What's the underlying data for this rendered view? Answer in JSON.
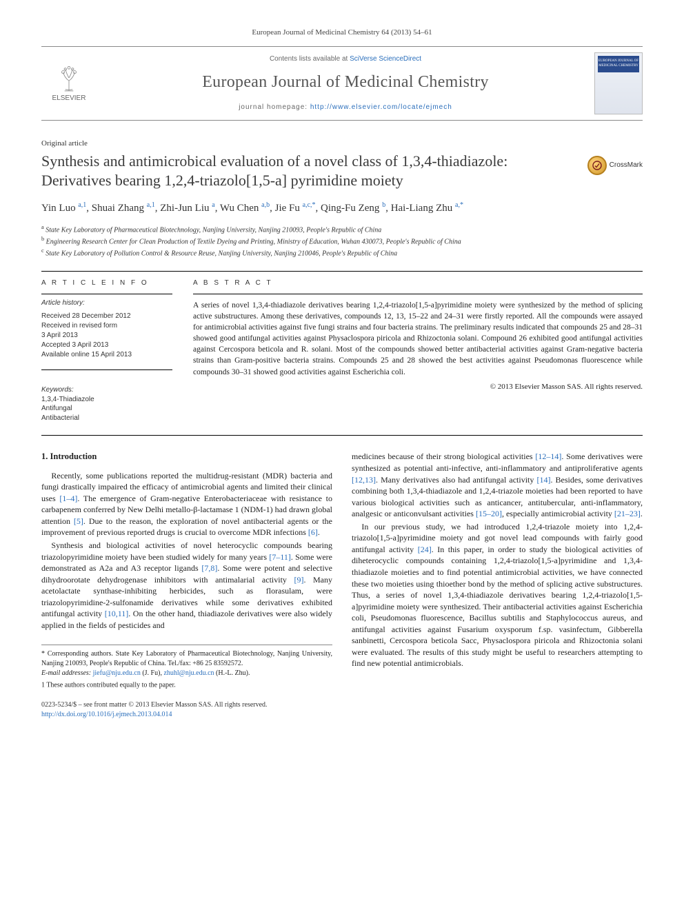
{
  "citation": "European Journal of Medicinal Chemistry 64 (2013) 54–61",
  "masthead": {
    "publisher": "ELSEVIER",
    "avail_prefix": "Contents lists available at ",
    "avail_link": "SciVerse ScienceDirect",
    "journal_title": "European Journal of Medicinal Chemistry",
    "home_prefix": "journal homepage: ",
    "home_url": "http://www.elsevier.com/locate/ejmech",
    "cover_label": "EUROPEAN JOURNAL OF MEDICINAL CHEMISTRY"
  },
  "article": {
    "type": "Original article",
    "title": "Synthesis and antimicrobical evaluation of a novel class of 1,3,4-thiadiazole: Derivatives bearing 1,2,4-triazolo[1,5-a] pyrimidine moiety",
    "crossmark": "CrossMark"
  },
  "authors": "Yin Luo <sup>a,1</sup>, Shuai Zhang <sup>a,1</sup>, Zhi-Jun Liu <sup>a</sup>, Wu Chen <sup>a,b</sup>, Jie Fu <sup>a,c,*</sup>, Qing-Fu Zeng <sup>b</sup>, Hai-Liang Zhu <sup>a,*</sup>",
  "affiliations": {
    "a": "State Key Laboratory of Pharmaceutical Biotechnology, Nanjing University, Nanjing 210093, People's Republic of China",
    "b": "Engineering Research Center for Clean Production of Textile Dyeing and Printing, Ministry of Education, Wuhan 430073, People's Republic of China",
    "c": "State Key Laboratory of Pollution Control & Resource Reuse, Nanjing University, Nanjing 210046, People's Republic of China"
  },
  "info": {
    "heading": "A R T I C L E   I N F O",
    "hist_label": "Article history:",
    "hist": [
      "Received 28 December 2012",
      "Received in revised form",
      "3 April 2013",
      "Accepted 3 April 2013",
      "Available online 15 April 2013"
    ],
    "kw_label": "Keywords:",
    "keywords": [
      "1,3,4-Thiadiazole",
      "Antifungal",
      "Antibacterial"
    ]
  },
  "abstract": {
    "heading": "A B S T R A C T",
    "text": "A series of novel 1,3,4-thiadiazole derivatives bearing 1,2,4-triazolo[1,5-a]pyrimidine moiety were synthesized by the method of splicing active substructures. Among these derivatives, compounds 12, 13, 15–22 and 24–31 were firstly reported. All the compounds were assayed for antimicrobial activities against five fungi strains and four bacteria strains. The preliminary results indicated that compounds 25 and 28–31 showed good antifungal activities against Physaclospora piricola and Rhizoctonia solani. Compound 26 exhibited good antifungal activities against Cercospora beticola and R. solani. Most of the compounds showed better antibacterial activities against Gram-negative bacteria strains than Gram-positive bacteria strains. Compounds 25 and 28 showed the best activities against Pseudomonas fluorescence while compounds 30–31 showed good activities against Escherichia coli.",
    "copyright": "© 2013 Elsevier Masson SAS. All rights reserved."
  },
  "intro": {
    "heading": "1.  Introduction",
    "p1": "Recently, some publications reported the multidrug-resistant (MDR) bacteria and fungi drastically impaired the efficacy of antimicrobial agents and limited their clinical uses [1–4]. The emergence of Gram-negative Enterobacteriaceae with resistance to carbapenem conferred by New Delhi metallo-β-lactamase 1 (NDM-1) had drawn global attention [5]. Due to the reason, the exploration of novel antibacterial agents or the improvement of previous reported drugs is crucial to overcome MDR infections [6].",
    "p2": "Synthesis and biological activities of novel heterocyclic compounds bearing triazolopyrimidine moiety have been studied widely for many years [7–11]. Some were demonstrated as A2a and A3 receptor ligands [7,8]. Some were potent and selective dihydroorotate dehydrogenase inhibitors with antimalarial activity [9]. Many acetolactate synthase-inhibiting herbicides, such as florasulam, were triazolopyrimidine-2-sulfonamide derivatives while some derivatives exhibited antifungal activity [10,11]. On the other hand, thiadiazole derivatives were also widely applied in the fields of pesticides and",
    "p3": "medicines because of their strong biological activities [12–14]. Some derivatives were synthesized as potential anti-infective, anti-inflammatory and antiproliferative agents [12,13]. Many derivatives also had antifungal activity [14]. Besides, some derivatives combining both 1,3,4-thiadiazole and 1,2,4-triazole moieties had been reported to have various biological activities such as anticancer, antitubercular, anti-inflammatory, analgesic or anticonvulsant activities [15–20], especially antimicrobial activity [21–23].",
    "p4": "In our previous study, we had introduced 1,2,4-triazole moiety into 1,2,4-triazolo[1,5-a]pyrimidine moiety and got novel lead compounds with fairly good antifungal activity [24]. In this paper, in order to study the biological activities of diheterocyclic compounds containing 1,2,4-triazolo[1,5-a]pyrimidine and 1,3,4-thiadiazole moieties and to find potential antimicrobial activities, we have connected these two moieties using thioether bond by the method of splicing active substructures. Thus, a series of novel 1,3,4-thiadiazole derivatives bearing 1,2,4-triazolo[1,5-a]pyrimidine moiety were synthesized. Their antibacterial activities against Escherichia coli, Pseudomonas fluorescence, Bacillus subtilis and Staphylococcus aureus, and antifungal activities against Fusarium oxysporum f.sp. vasinfectum, Gibberella sanbinetti, Cercospora beticola Sacc, Physaclospora piricola and Rhizoctonia solani were evaluated. The results of this study might be useful to researchers attempting to find new potential antimicrobials."
  },
  "footnotes": {
    "corr": "* Corresponding authors. State Key Laboratory of Pharmaceutical Biotechnology, Nanjing University, Nanjing 210093, People's Republic of China. Tel./fax: +86 25 83592572.",
    "emails_label": "E-mail addresses: ",
    "email1": "jiefu@nju.edu.cn",
    "email1_who": " (J. Fu), ",
    "email2": "zhuhl@nju.edu.cn",
    "email2_who": " (H.-L. Zhu).",
    "equal": "1 These authors contributed equally to the paper."
  },
  "bottom": {
    "line1": "0223-5234/$ – see front matter © 2013 Elsevier Masson SAS. All rights reserved.",
    "doi": "http://dx.doi.org/10.1016/j.ejmech.2013.04.014"
  },
  "colors": {
    "link": "#2a6ebb",
    "text": "#222222",
    "rule": "#888888",
    "publisher_orange": "#ef7c00"
  }
}
